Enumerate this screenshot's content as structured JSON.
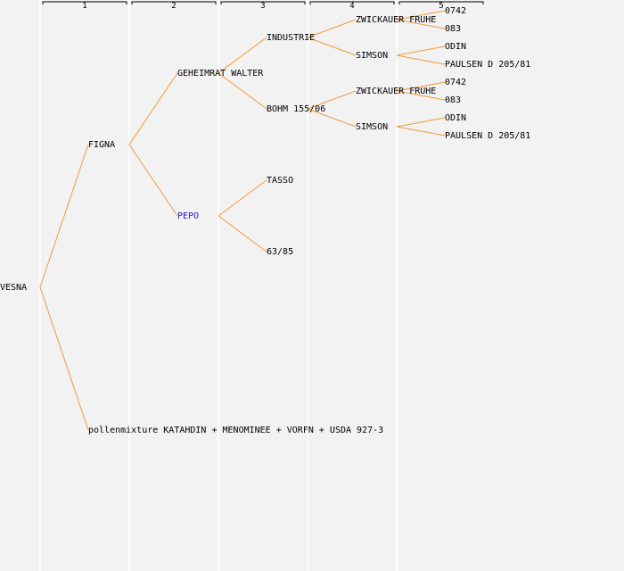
{
  "generations": [
    "1",
    "2",
    "3",
    "4",
    "5"
  ],
  "colors": {
    "edge": "#f29a3a",
    "background": "#f2f2f2",
    "highlight": "#2020c0"
  },
  "nodes": [
    {
      "id": "vesna",
      "label": "VESNA"
    },
    {
      "id": "figna",
      "label": "FIGNA"
    },
    {
      "id": "pollen",
      "label": "pollenmixture KATAHDIN + MENOMINEE + VORFN + USDA 927-3"
    },
    {
      "id": "geheimrat",
      "label": "GEHEIMRAT WALTER"
    },
    {
      "id": "pepo",
      "label": "PEPO",
      "highlight": true
    },
    {
      "id": "industrie",
      "label": "INDUSTRIE"
    },
    {
      "id": "bohm",
      "label": "BOHM 155/06"
    },
    {
      "id": "tasso",
      "label": "TASSO"
    },
    {
      "id": "c6385",
      "label": "63/85"
    },
    {
      "id": "zwick1",
      "label": "ZWICKAUER FRUHE"
    },
    {
      "id": "simson1",
      "label": "SIMSON"
    },
    {
      "id": "zwick2",
      "label": "ZWICKAUER FRUHE"
    },
    {
      "id": "simson2",
      "label": "SIMSON"
    },
    {
      "id": "p0742a",
      "label": "0742"
    },
    {
      "id": "p083a",
      "label": "083"
    },
    {
      "id": "odin1",
      "label": "ODIN"
    },
    {
      "id": "paulsen1",
      "label": "PAULSEN D 205/81"
    },
    {
      "id": "p0742b",
      "label": "0742"
    },
    {
      "id": "p083b",
      "label": "083"
    },
    {
      "id": "odin2",
      "label": "ODIN"
    },
    {
      "id": "paulsen2",
      "label": "PAULSEN D 205/81"
    }
  ],
  "edges": [
    [
      "vesna",
      "figna"
    ],
    [
      "vesna",
      "pollen"
    ],
    [
      "figna",
      "geheimrat"
    ],
    [
      "figna",
      "pepo"
    ],
    [
      "geheimrat",
      "industrie"
    ],
    [
      "geheimrat",
      "bohm"
    ],
    [
      "pepo",
      "tasso"
    ],
    [
      "pepo",
      "c6385"
    ],
    [
      "industrie",
      "zwick1"
    ],
    [
      "industrie",
      "simson1"
    ],
    [
      "bohm",
      "zwick2"
    ],
    [
      "bohm",
      "simson2"
    ],
    [
      "zwick1",
      "p0742a"
    ],
    [
      "zwick1",
      "p083a"
    ],
    [
      "simson1",
      "odin1"
    ],
    [
      "simson1",
      "paulsen1"
    ],
    [
      "zwick2",
      "p0742b"
    ],
    [
      "zwick2",
      "p083b"
    ],
    [
      "simson2",
      "odin2"
    ],
    [
      "simson2",
      "paulsen2"
    ]
  ]
}
